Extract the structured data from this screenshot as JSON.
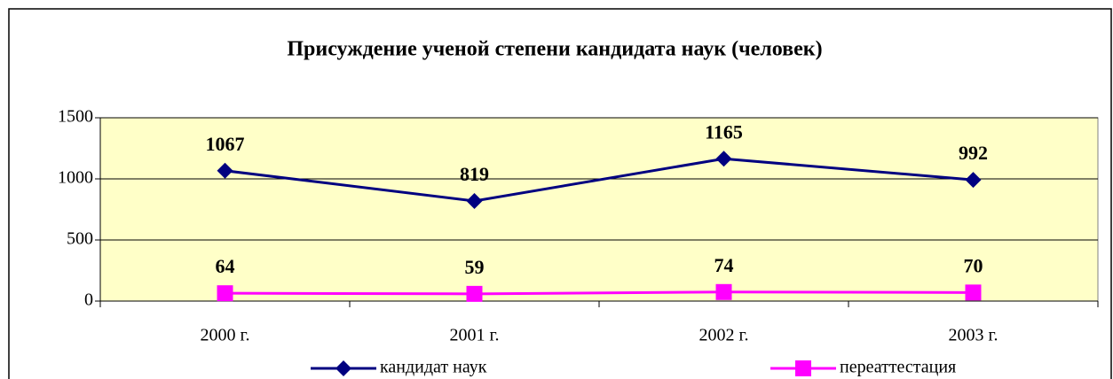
{
  "chart_data": {
    "type": "line",
    "title": "Присуждение ученой степени кандидата наук (человек)",
    "categories": [
      "2000 г.",
      "2001 г.",
      "2002 г.",
      "2003 г."
    ],
    "series": [
      {
        "name": "кандидат наук",
        "color": "#000080",
        "marker": "diamond",
        "values": [
          1067,
          819,
          1165,
          992
        ]
      },
      {
        "name": "переаттестация",
        "color": "#ff00ff",
        "marker": "square",
        "values": [
          64,
          59,
          74,
          70
        ]
      }
    ],
    "ylim": [
      0,
      1500
    ],
    "yticks": [
      0,
      500,
      1000,
      1500
    ],
    "grid": true,
    "legend": "bottom"
  }
}
